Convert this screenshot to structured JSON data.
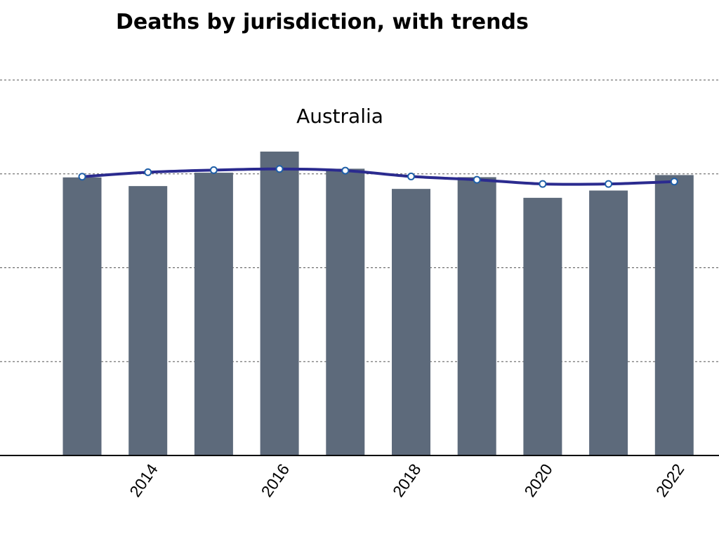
{
  "chart_data": {
    "type": "bar",
    "title": "Deaths by jurisdiction, with trends",
    "subtitle": "Australia",
    "x": [
      2013,
      2014,
      2015,
      2016,
      2017,
      2018,
      2019,
      2020,
      2021,
      2022
    ],
    "x_tick_labels": [
      "2014",
      "2016",
      "2018",
      "2020",
      "2022"
    ],
    "series": [
      {
        "type": "bar",
        "values": [
          1.185,
          1.148,
          1.205,
          1.295,
          1.222,
          1.136,
          1.186,
          1.098,
          1.129,
          1.195
        ],
        "color": "#5d6a7b"
      },
      {
        "type": "line",
        "values": [
          1.188,
          1.207,
          1.216,
          1.221,
          1.214,
          1.189,
          1.175,
          1.157,
          1.157,
          1.167
        ],
        "color": "#2b2b8f"
      }
    ],
    "ylim": [
      0,
      1.6
    ],
    "grid": true,
    "ylabel": "",
    "xlabel": ""
  }
}
